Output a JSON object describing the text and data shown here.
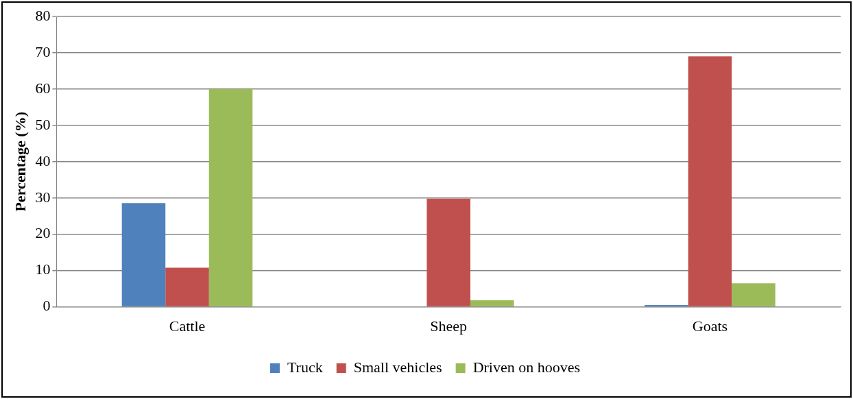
{
  "chart_data": {
    "type": "bar",
    "ylabel": "Percentage (%)",
    "categories": [
      "Cattle",
      "Sheep",
      "Goats"
    ],
    "series": [
      {
        "name": "Truck",
        "color": "#4f81bd",
        "values": [
          28.6,
          0,
          0.5
        ]
      },
      {
        "name": "Small vehicles",
        "color": "#c0504d",
        "values": [
          10.8,
          29.8,
          69
        ]
      },
      {
        "name": "Driven on hooves",
        "color": "#9bbb59",
        "values": [
          60,
          1.8,
          6.5
        ]
      }
    ],
    "ylim": [
      0,
      80
    ],
    "yticks": [
      0,
      10,
      20,
      30,
      40,
      50,
      60,
      70,
      80
    ],
    "grid": "y",
    "legend": "bottom"
  }
}
